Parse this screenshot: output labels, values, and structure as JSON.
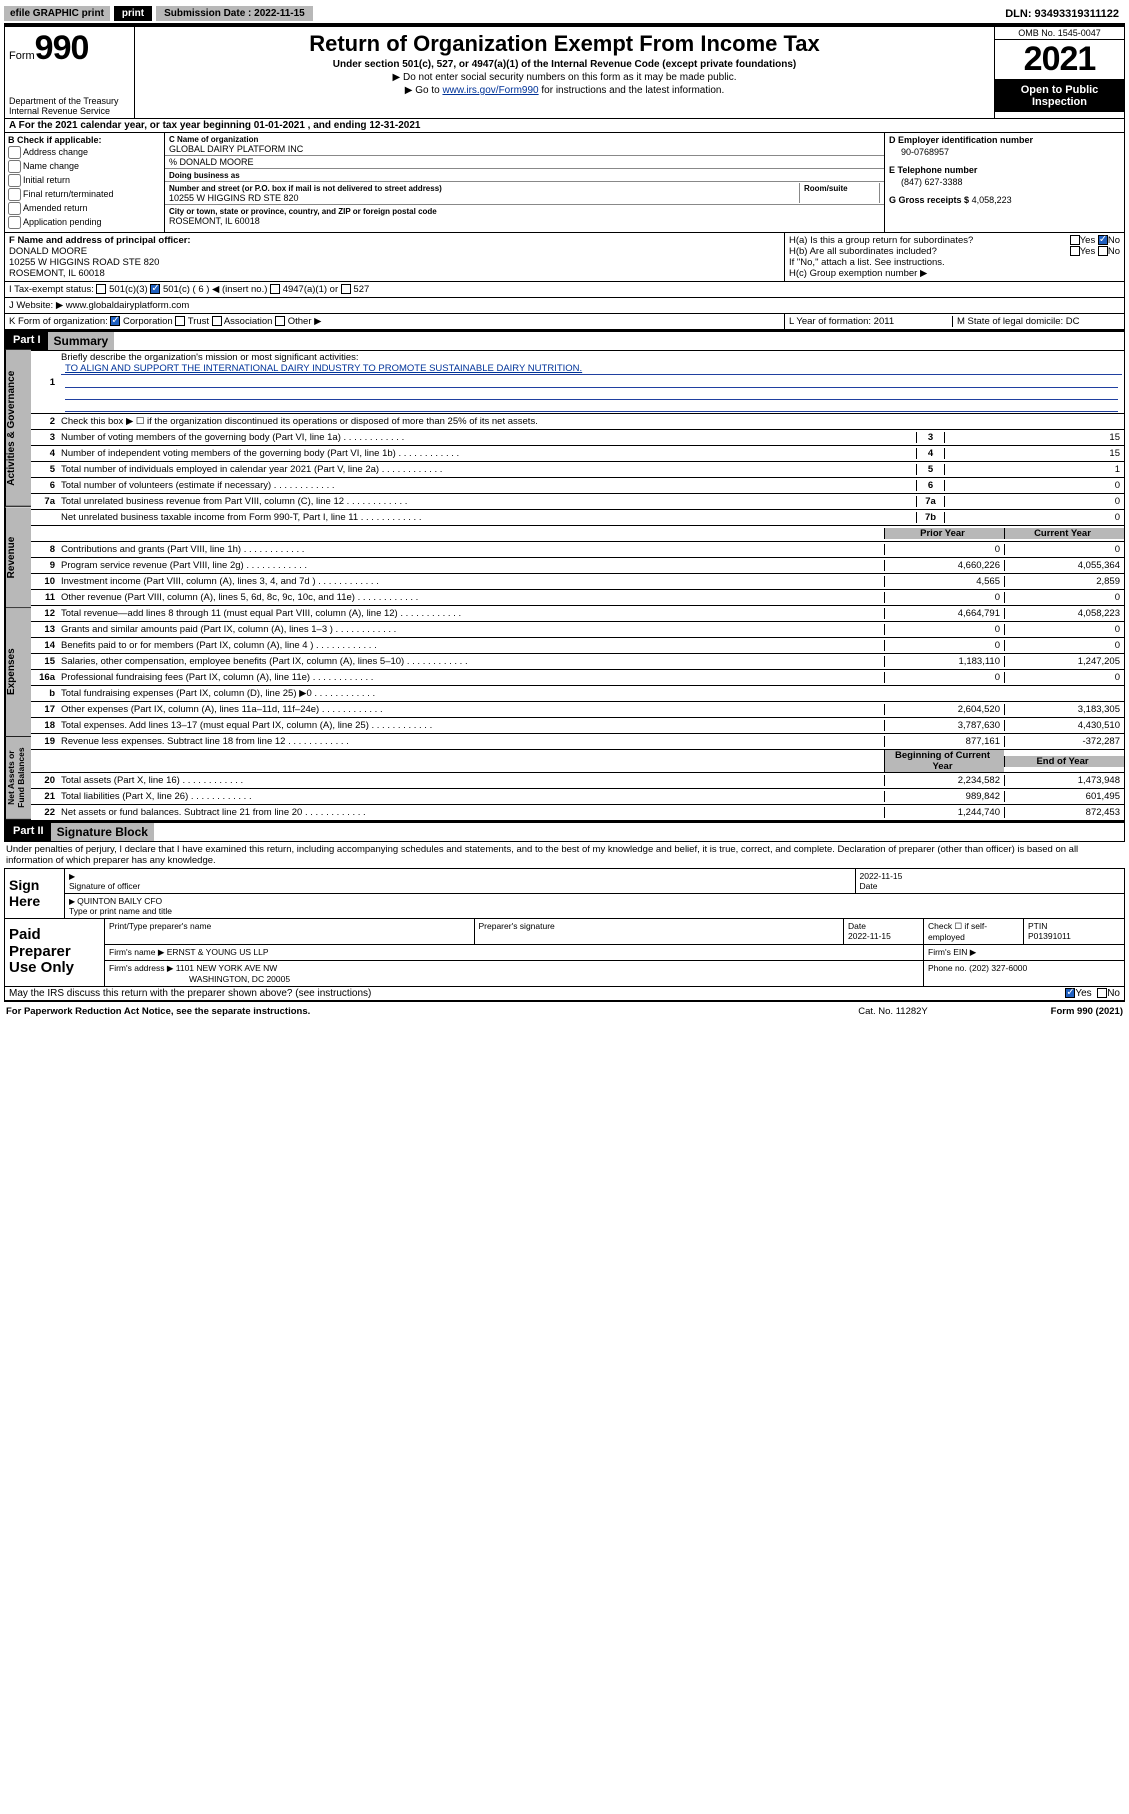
{
  "colors": {
    "black": "#000000",
    "white": "#ffffff",
    "gray_bg": "#b8b8b8",
    "link": "#003399",
    "rule_blue": "#2040a0",
    "check_blue": "#2060c0"
  },
  "topbar": {
    "efile": "efile GRAPHIC print",
    "submission_label": "Submission Date : 2022-11-15",
    "dln": "DLN: 93493319311122"
  },
  "header": {
    "form_label": "Form",
    "form_number": "990",
    "dept": "Department of the Treasury",
    "irs": "Internal Revenue Service",
    "title": "Return of Organization Exempt From Income Tax",
    "subtitle": "Under section 501(c), 527, or 4947(a)(1) of the Internal Revenue Code (except private foundations)",
    "note1": "▶ Do not enter social security numbers on this form as it may be made public.",
    "note2_pre": "▶ Go to ",
    "note2_link": "www.irs.gov/Form990",
    "note2_post": " for instructions and the latest information.",
    "omb": "OMB No. 1545-0047",
    "year": "2021",
    "inspect": "Open to Public Inspection"
  },
  "lineA": {
    "text": "A For the 2021 calendar year, or tax year beginning 01-01-2021   , and ending 12-31-2021"
  },
  "colB": {
    "heading": "B Check if applicable:",
    "items": [
      "Address change",
      "Name change",
      "Initial return",
      "Final return/terminated",
      "Amended return",
      "Application pending"
    ]
  },
  "colC": {
    "name_label": "C Name of organization",
    "name": "GLOBAL DAIRY PLATFORM INC",
    "care_of": "% DONALD MOORE",
    "dba_label": "Doing business as",
    "street_label": "Number and street (or P.O. box if mail is not delivered to street address)",
    "room_label": "Room/suite",
    "street": "10255 W HIGGINS RD STE 820",
    "city_label": "City or town, state or province, country, and ZIP or foreign postal code",
    "city": "ROSEMONT, IL  60018"
  },
  "colD": {
    "ein_label": "D Employer identification number",
    "ein": "90-0768957",
    "phone_label": "E Telephone number",
    "phone": "(847) 627-3388",
    "gross_label": "G Gross receipts $",
    "gross": "4,058,223"
  },
  "rowF": {
    "label": "F Name and address of principal officer:",
    "name": "DONALD MOORE",
    "addr1": "10255 W HIGGINS ROAD STE 820",
    "addr2": "ROSEMONT, IL  60018"
  },
  "rowH": {
    "a": "H(a)  Is this a group return for subordinates?",
    "a_yes": "Yes",
    "a_no": "No",
    "b": "H(b)  Are all subordinates included?",
    "b_yes": "Yes",
    "b_no": "No",
    "b_note": "If \"No,\" attach a list. See instructions.",
    "c": "H(c)  Group exemption number ▶"
  },
  "rowI": {
    "label": "I   Tax-exempt status:",
    "opts": [
      "501(c)(3)",
      "501(c) ( 6 ) ◀ (insert no.)",
      "4947(a)(1) or",
      "527"
    ]
  },
  "rowJ": {
    "label": "J   Website: ▶",
    "value": "www.globaldairyplatform.com"
  },
  "rowK": {
    "label": "K Form of organization:",
    "opts": [
      "Corporation",
      "Trust",
      "Association",
      "Other ▶"
    ],
    "L": "L Year of formation: 2011",
    "M": "M State of legal domicile: DC"
  },
  "part1": {
    "tag": "Part I",
    "title": "Summary",
    "line1_label": "Briefly describe the organization's mission or most significant activities:",
    "mission": "TO ALIGN AND SUPPORT THE INTERNATIONAL DAIRY INDUSTRY TO PROMOTE SUSTAINABLE DAIRY NUTRITION.",
    "line2": "Check this box ▶ ☐  if the organization discontinued its operations or disposed of more than 25% of its net assets.",
    "rows_gov": [
      {
        "n": "3",
        "d": "Number of voting members of the governing body (Part VI, line 1a)",
        "box": "3",
        "v": "15"
      },
      {
        "n": "4",
        "d": "Number of independent voting members of the governing body (Part VI, line 1b)",
        "box": "4",
        "v": "15"
      },
      {
        "n": "5",
        "d": "Total number of individuals employed in calendar year 2021 (Part V, line 2a)",
        "box": "5",
        "v": "1"
      },
      {
        "n": "6",
        "d": "Total number of volunteers (estimate if necessary)",
        "box": "6",
        "v": "0"
      },
      {
        "n": "7a",
        "d": "Total unrelated business revenue from Part VIII, column (C), line 12",
        "box": "7a",
        "v": "0"
      },
      {
        "n": "",
        "d": "Net unrelated business taxable income from Form 990-T, Part I, line 11",
        "box": "7b",
        "v": "0"
      }
    ],
    "col_hdr_prior": "Prior Year",
    "col_hdr_current": "Current Year",
    "rows_rev": [
      {
        "n": "8",
        "d": "Contributions and grants (Part VIII, line 1h)",
        "p": "0",
        "c": "0"
      },
      {
        "n": "9",
        "d": "Program service revenue (Part VIII, line 2g)",
        "p": "4,660,226",
        "c": "4,055,364"
      },
      {
        "n": "10",
        "d": "Investment income (Part VIII, column (A), lines 3, 4, and 7d )",
        "p": "4,565",
        "c": "2,859"
      },
      {
        "n": "11",
        "d": "Other revenue (Part VIII, column (A), lines 5, 6d, 8c, 9c, 10c, and 11e)",
        "p": "0",
        "c": "0"
      },
      {
        "n": "12",
        "d": "Total revenue—add lines 8 through 11 (must equal Part VIII, column (A), line 12)",
        "p": "4,664,791",
        "c": "4,058,223"
      }
    ],
    "rows_exp": [
      {
        "n": "13",
        "d": "Grants and similar amounts paid (Part IX, column (A), lines 1–3 )",
        "p": "0",
        "c": "0"
      },
      {
        "n": "14",
        "d": "Benefits paid to or for members (Part IX, column (A), line 4 )",
        "p": "0",
        "c": "0"
      },
      {
        "n": "15",
        "d": "Salaries, other compensation, employee benefits (Part IX, column (A), lines 5–10)",
        "p": "1,183,110",
        "c": "1,247,205"
      },
      {
        "n": "16a",
        "d": "Professional fundraising fees (Part IX, column (A), line 11e)",
        "p": "0",
        "c": "0"
      },
      {
        "n": "b",
        "d": "Total fundraising expenses (Part IX, column (D), line 25) ▶0",
        "p": "",
        "c": "",
        "shaded": true
      },
      {
        "n": "17",
        "d": "Other expenses (Part IX, column (A), lines 11a–11d, 11f–24e)",
        "p": "2,604,520",
        "c": "3,183,305"
      },
      {
        "n": "18",
        "d": "Total expenses. Add lines 13–17 (must equal Part IX, column (A), line 25)",
        "p": "3,787,630",
        "c": "4,430,510"
      },
      {
        "n": "19",
        "d": "Revenue less expenses. Subtract line 18 from line 12",
        "p": "877,161",
        "c": "-372,287"
      }
    ],
    "col_hdr_begin": "Beginning of Current Year",
    "col_hdr_end": "End of Year",
    "rows_net": [
      {
        "n": "20",
        "d": "Total assets (Part X, line 16)",
        "p": "2,234,582",
        "c": "1,473,948"
      },
      {
        "n": "21",
        "d": "Total liabilities (Part X, line 26)",
        "p": "989,842",
        "c": "601,495"
      },
      {
        "n": "22",
        "d": "Net assets or fund balances. Subtract line 21 from line 20",
        "p": "1,244,740",
        "c": "872,453"
      }
    ],
    "side_labels": {
      "gov": "Activities & Governance",
      "rev": "Revenue",
      "exp": "Expenses",
      "net": "Net Assets or Fund Balances"
    }
  },
  "part2": {
    "tag": "Part II",
    "title": "Signature Block",
    "perjury": "Under penalties of perjury, I declare that I have examined this return, including accompanying schedules and statements, and to the best of my knowledge and belief, it is true, correct, and complete. Declaration of preparer (other than officer) is based on all information of which preparer has any knowledge.",
    "sign_here": "Sign Here",
    "sig_officer": "Signature of officer",
    "sig_date": "Date",
    "sig_date_val": "2022-11-15",
    "officer_name": "QUINTON BAILY CFO",
    "type_name": "Type or print name and title",
    "paid": "Paid Preparer Use Only",
    "prep_name_label": "Print/Type preparer's name",
    "prep_sig_label": "Preparer's signature",
    "prep_date_label": "Date",
    "prep_date": "2022-11-15",
    "check_if": "Check ☐ if self-employed",
    "ptin_label": "PTIN",
    "ptin": "P01391011",
    "firm_name_label": "Firm's name    ▶",
    "firm_name": "ERNST & YOUNG US LLP",
    "firm_ein_label": "Firm's EIN ▶",
    "firm_addr_label": "Firm's address ▶",
    "firm_addr1": "1101 NEW YORK AVE NW",
    "firm_addr2": "WASHINGTON, DC  20005",
    "firm_phone_label": "Phone no.",
    "firm_phone": "(202) 327-6000",
    "may_irs": "May the IRS discuss this return with the preparer shown above? (see instructions)",
    "may_yes": "Yes",
    "may_no": "No"
  },
  "footer": {
    "f1": "For Paperwork Reduction Act Notice, see the separate instructions.",
    "f2": "Cat. No. 11282Y",
    "f3_pre": "Form ",
    "f3_mid": "990",
    "f3_post": " (2021)"
  }
}
